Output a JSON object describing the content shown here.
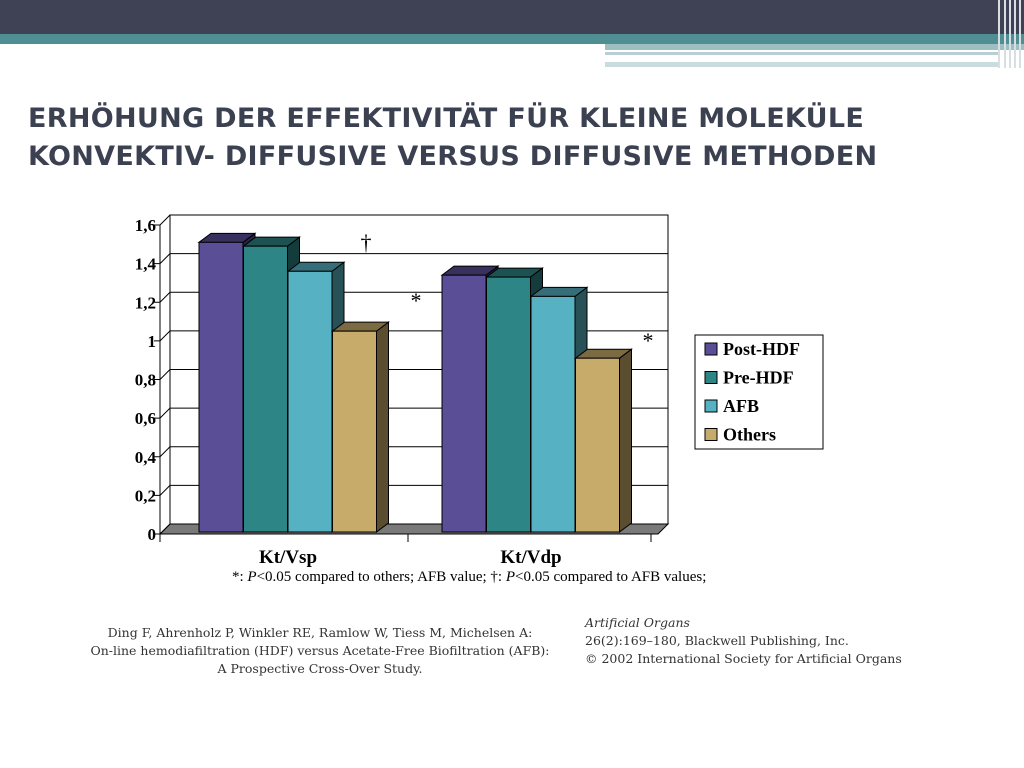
{
  "slide": {
    "title_line1": "ERHÖHUNG DER EFFEKTIVITÄT FÜR KLEINE MOLEKÜLE",
    "title_line2": "KONVEKTIV- DIFFUSIVE VERSUS DIFFUSIVE METHODEN",
    "citation_line1": "Ding F, Ahrenholz P, Winkler RE, Ramlow W, Tiess M, Michelsen A:",
    "citation_line2": "On-line hemodiafiltration (HDF) versus Acetate-Free Biofiltration (AFB):",
    "citation_line3": "A Prospective Cross-Over Study.",
    "journal_name": "Artificial Organs",
    "journal_line2": "26(2):169–180, Blackwell Publishing, Inc.",
    "journal_line3": "© 2002 International Society for Artificial Organs"
  },
  "chart_data": {
    "type": "bar",
    "categories": [
      "Kt/Vsp",
      "Kt/Vdp"
    ],
    "series": [
      {
        "name": "Post-HDF",
        "values": [
          1.5,
          1.33
        ],
        "color": "#5a4e96"
      },
      {
        "name": "Pre-HDF",
        "values": [
          1.48,
          1.32
        ],
        "color": "#2e8585"
      },
      {
        "name": "AFB",
        "values": [
          1.35,
          1.22
        ],
        "color": "#56b2c2"
      },
      {
        "name": "Others",
        "values": [
          1.04,
          0.9
        ],
        "color": "#c7ab6b"
      }
    ],
    "yticks": [
      "0",
      "0,2",
      "0,4",
      "0,6",
      "0,8",
      "1",
      "1,2",
      "1,4",
      "1,6"
    ],
    "ylim": [
      0,
      1.6
    ],
    "grid": true,
    "legend_position": "right",
    "annotations": [
      {
        "text": "†",
        "category": "Kt/Vsp",
        "series": "AFB"
      },
      {
        "text": "*",
        "category": "Kt/Vsp",
        "series": "Others"
      },
      {
        "text": "*",
        "category": "Kt/Vdp",
        "series": "Others"
      }
    ],
    "footnote_prefix": "*: ",
    "footnote_p1": "P",
    "footnote_mid": "<0.05 compared to others; AFB value; †: ",
    "footnote_p2": "P",
    "footnote_suffix": "<0.05 compared to AFB values;"
  }
}
